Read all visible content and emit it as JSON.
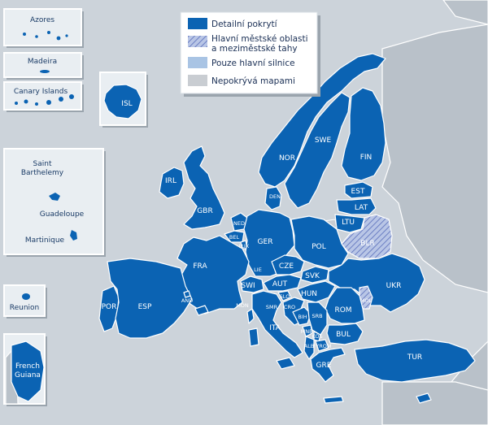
{
  "legend": {
    "items": [
      {
        "label_lines": [
          "Detailní pokrytí"
        ],
        "kind": "full",
        "color": "#0b63b3"
      },
      {
        "label_lines": [
          "Hlavní městské oblasti",
          "a meziměstské tahy"
        ],
        "kind": "partial",
        "color": "#9aaad8"
      },
      {
        "label_lines": [
          "Pouze hlavní silnice"
        ],
        "kind": "major",
        "color": "#a9c4e4"
      },
      {
        "label_lines": [
          "Nepokrývá mapami"
        ],
        "kind": "none",
        "color": "#c9cdd2"
      }
    ]
  },
  "insets": [
    {
      "lines": [
        "Azores"
      ]
    },
    {
      "lines": [
        "Madeira"
      ]
    },
    {
      "lines": [
        "Canary Islands"
      ]
    },
    {
      "lines": [
        "ISL"
      ]
    },
    {
      "lines": [
        "Saint",
        "Barthelemy"
      ]
    },
    {
      "lines": [
        "Guadeloupe"
      ]
    },
    {
      "lines": [
        "Martinique"
      ]
    },
    {
      "lines": [
        "Reunion"
      ]
    },
    {
      "lines": [
        "French",
        "Guiana"
      ]
    }
  ],
  "countries": {
    "IRL": "IRL",
    "GBR": "GBR",
    "NOR": "NOR",
    "SWE": "SWE",
    "FIN": "FIN",
    "DEN": "DEN",
    "EST": "EST",
    "LAT": "LAT",
    "LTU": "LTU",
    "BLR": "BLR",
    "NED": "NED",
    "BEL": "BEL",
    "LUX": "LUX",
    "GER": "GER",
    "POL": "POL",
    "FRA": "FRA",
    "SWI": "SWI",
    "LIE": "LIE",
    "AUT": "AUT",
    "CZE": "CZE",
    "SVK": "SVK",
    "HUN": "HUN",
    "SLO": "SLO",
    "CRO": "CRO",
    "BIH": "BIH",
    "SRB": "SRB",
    "MNE": "MNE",
    "ALB": "ALB",
    "FYROM": "FYROM",
    "BUL": "BUL",
    "ROM": "ROM",
    "MOL": "MOL",
    "UKR": "UKR",
    "POR": "POR",
    "ESP": "ESP",
    "AND": "AND",
    "ITA": "ITA",
    "GRE": "GRE",
    "TUR": "TUR",
    "MON": "MON",
    "SMR": "SMR",
    "KOS": "KOS"
  }
}
